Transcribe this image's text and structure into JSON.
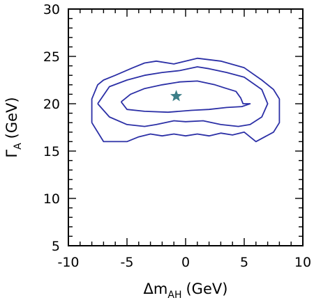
{
  "chart_data": {
    "type": "line",
    "title": "",
    "xlabel": {
      "symbol": "Δm",
      "subscript": "AH",
      "unit": "(GeV)"
    },
    "ylabel": {
      "symbol": "Γ",
      "subscript": "A",
      "unit": "(GeV)"
    },
    "xlim": [
      -10,
      10
    ],
    "ylim": [
      5,
      30
    ],
    "xticks": [
      -10,
      -5,
      0,
      5,
      10
    ],
    "xtick_labels": [
      "-10",
      "-5",
      "0",
      "5",
      "10"
    ],
    "yticks": [
      5,
      10,
      15,
      20,
      25,
      30
    ],
    "ytick_labels": [
      "5",
      "10",
      "15",
      "20",
      "25",
      "30"
    ],
    "minor_step": 1,
    "grid": false,
    "line_color": "#2b2fa6",
    "marker_color": "#3d7f88",
    "best_fit": {
      "x": -0.8,
      "y": 20.8,
      "marker": "star"
    },
    "series": [
      {
        "closed": true,
        "points": [
          [
            -5.5,
            20.2
          ],
          [
            -5.0,
            19.4
          ],
          [
            -3.5,
            19.2
          ],
          [
            -1.5,
            19.1
          ],
          [
            0.5,
            19.3
          ],
          [
            2.0,
            19.4
          ],
          [
            3.5,
            19.6
          ],
          [
            4.8,
            19.7
          ],
          [
            5.5,
            20.0
          ],
          [
            4.9,
            20.0
          ],
          [
            4.7,
            20.6
          ],
          [
            4.3,
            21.3
          ],
          [
            3.5,
            21.6
          ],
          [
            2.5,
            22.0
          ],
          [
            1.0,
            22.4
          ],
          [
            -0.5,
            22.3
          ],
          [
            -2.0,
            22.0
          ],
          [
            -3.5,
            21.6
          ],
          [
            -4.7,
            21.0
          ],
          [
            -5.5,
            20.2
          ]
        ]
      },
      {
        "closed": true,
        "points": [
          [
            -7.5,
            20.0
          ],
          [
            -6.5,
            18.6
          ],
          [
            -5.0,
            17.8
          ],
          [
            -3.5,
            17.6
          ],
          [
            -2.5,
            17.8
          ],
          [
            -1.0,
            18.2
          ],
          [
            0.0,
            18.1
          ],
          [
            1.5,
            18.2
          ],
          [
            3.0,
            17.8
          ],
          [
            4.5,
            17.6
          ],
          [
            5.5,
            17.8
          ],
          [
            6.5,
            18.6
          ],
          [
            7.0,
            20.0
          ],
          [
            6.5,
            21.5
          ],
          [
            5.0,
            22.8
          ],
          [
            3.5,
            23.3
          ],
          [
            2.0,
            23.7
          ],
          [
            1.0,
            23.9
          ],
          [
            -0.5,
            23.5
          ],
          [
            -2.0,
            23.3
          ],
          [
            -3.5,
            23.0
          ],
          [
            -5.0,
            22.5
          ],
          [
            -6.5,
            21.8
          ],
          [
            -7.5,
            20.0
          ]
        ]
      },
      {
        "closed": true,
        "points": [
          [
            -8.0,
            18.0
          ],
          [
            -7.0,
            16.0
          ],
          [
            -6.0,
            16.0
          ],
          [
            -5.0,
            16.0
          ],
          [
            -4.0,
            16.5
          ],
          [
            -3.0,
            16.8
          ],
          [
            -2.0,
            16.6
          ],
          [
            -1.0,
            16.8
          ],
          [
            0.0,
            16.6
          ],
          [
            1.0,
            16.8
          ],
          [
            2.0,
            16.6
          ],
          [
            3.0,
            16.9
          ],
          [
            4.0,
            16.7
          ],
          [
            5.0,
            17.0
          ],
          [
            6.0,
            16.0
          ],
          [
            7.5,
            17.0
          ],
          [
            8.0,
            18.0
          ],
          [
            8.0,
            20.5
          ],
          [
            7.5,
            21.5
          ],
          [
            6.5,
            22.5
          ],
          [
            5.0,
            23.8
          ],
          [
            3.0,
            24.5
          ],
          [
            1.0,
            24.8
          ],
          [
            -1.0,
            24.2
          ],
          [
            -2.5,
            24.5
          ],
          [
            -3.5,
            24.3
          ],
          [
            -4.5,
            23.8
          ],
          [
            -6.0,
            23.0
          ],
          [
            -7.0,
            22.5
          ],
          [
            -7.5,
            22.0
          ],
          [
            -8.0,
            20.5
          ],
          [
            -8.0,
            18.0
          ]
        ]
      }
    ]
  }
}
